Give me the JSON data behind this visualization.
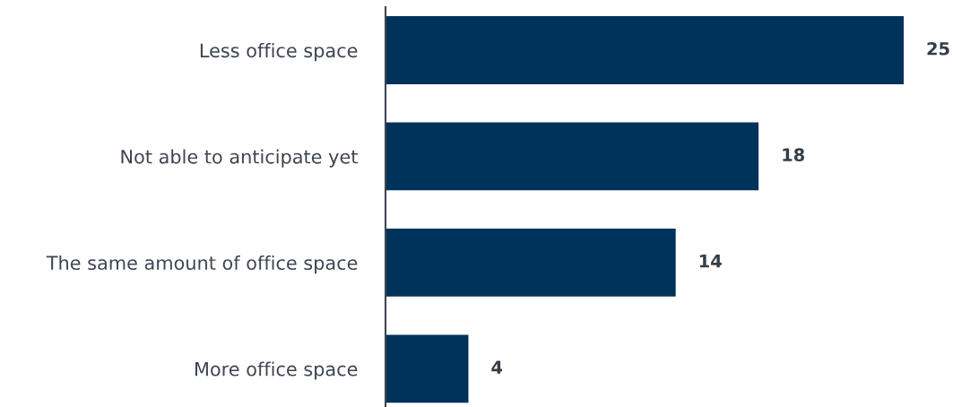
{
  "chart_data": {
    "type": "bar",
    "orientation": "horizontal",
    "categories": [
      "Less office space",
      "Not able to anticipate yet",
      "The same amount of office space",
      "More office space"
    ],
    "values": [
      25,
      18,
      14,
      4
    ],
    "color": "#00335c",
    "data_labels": true,
    "grid": false,
    "legend": false,
    "tick_labels": "y"
  }
}
